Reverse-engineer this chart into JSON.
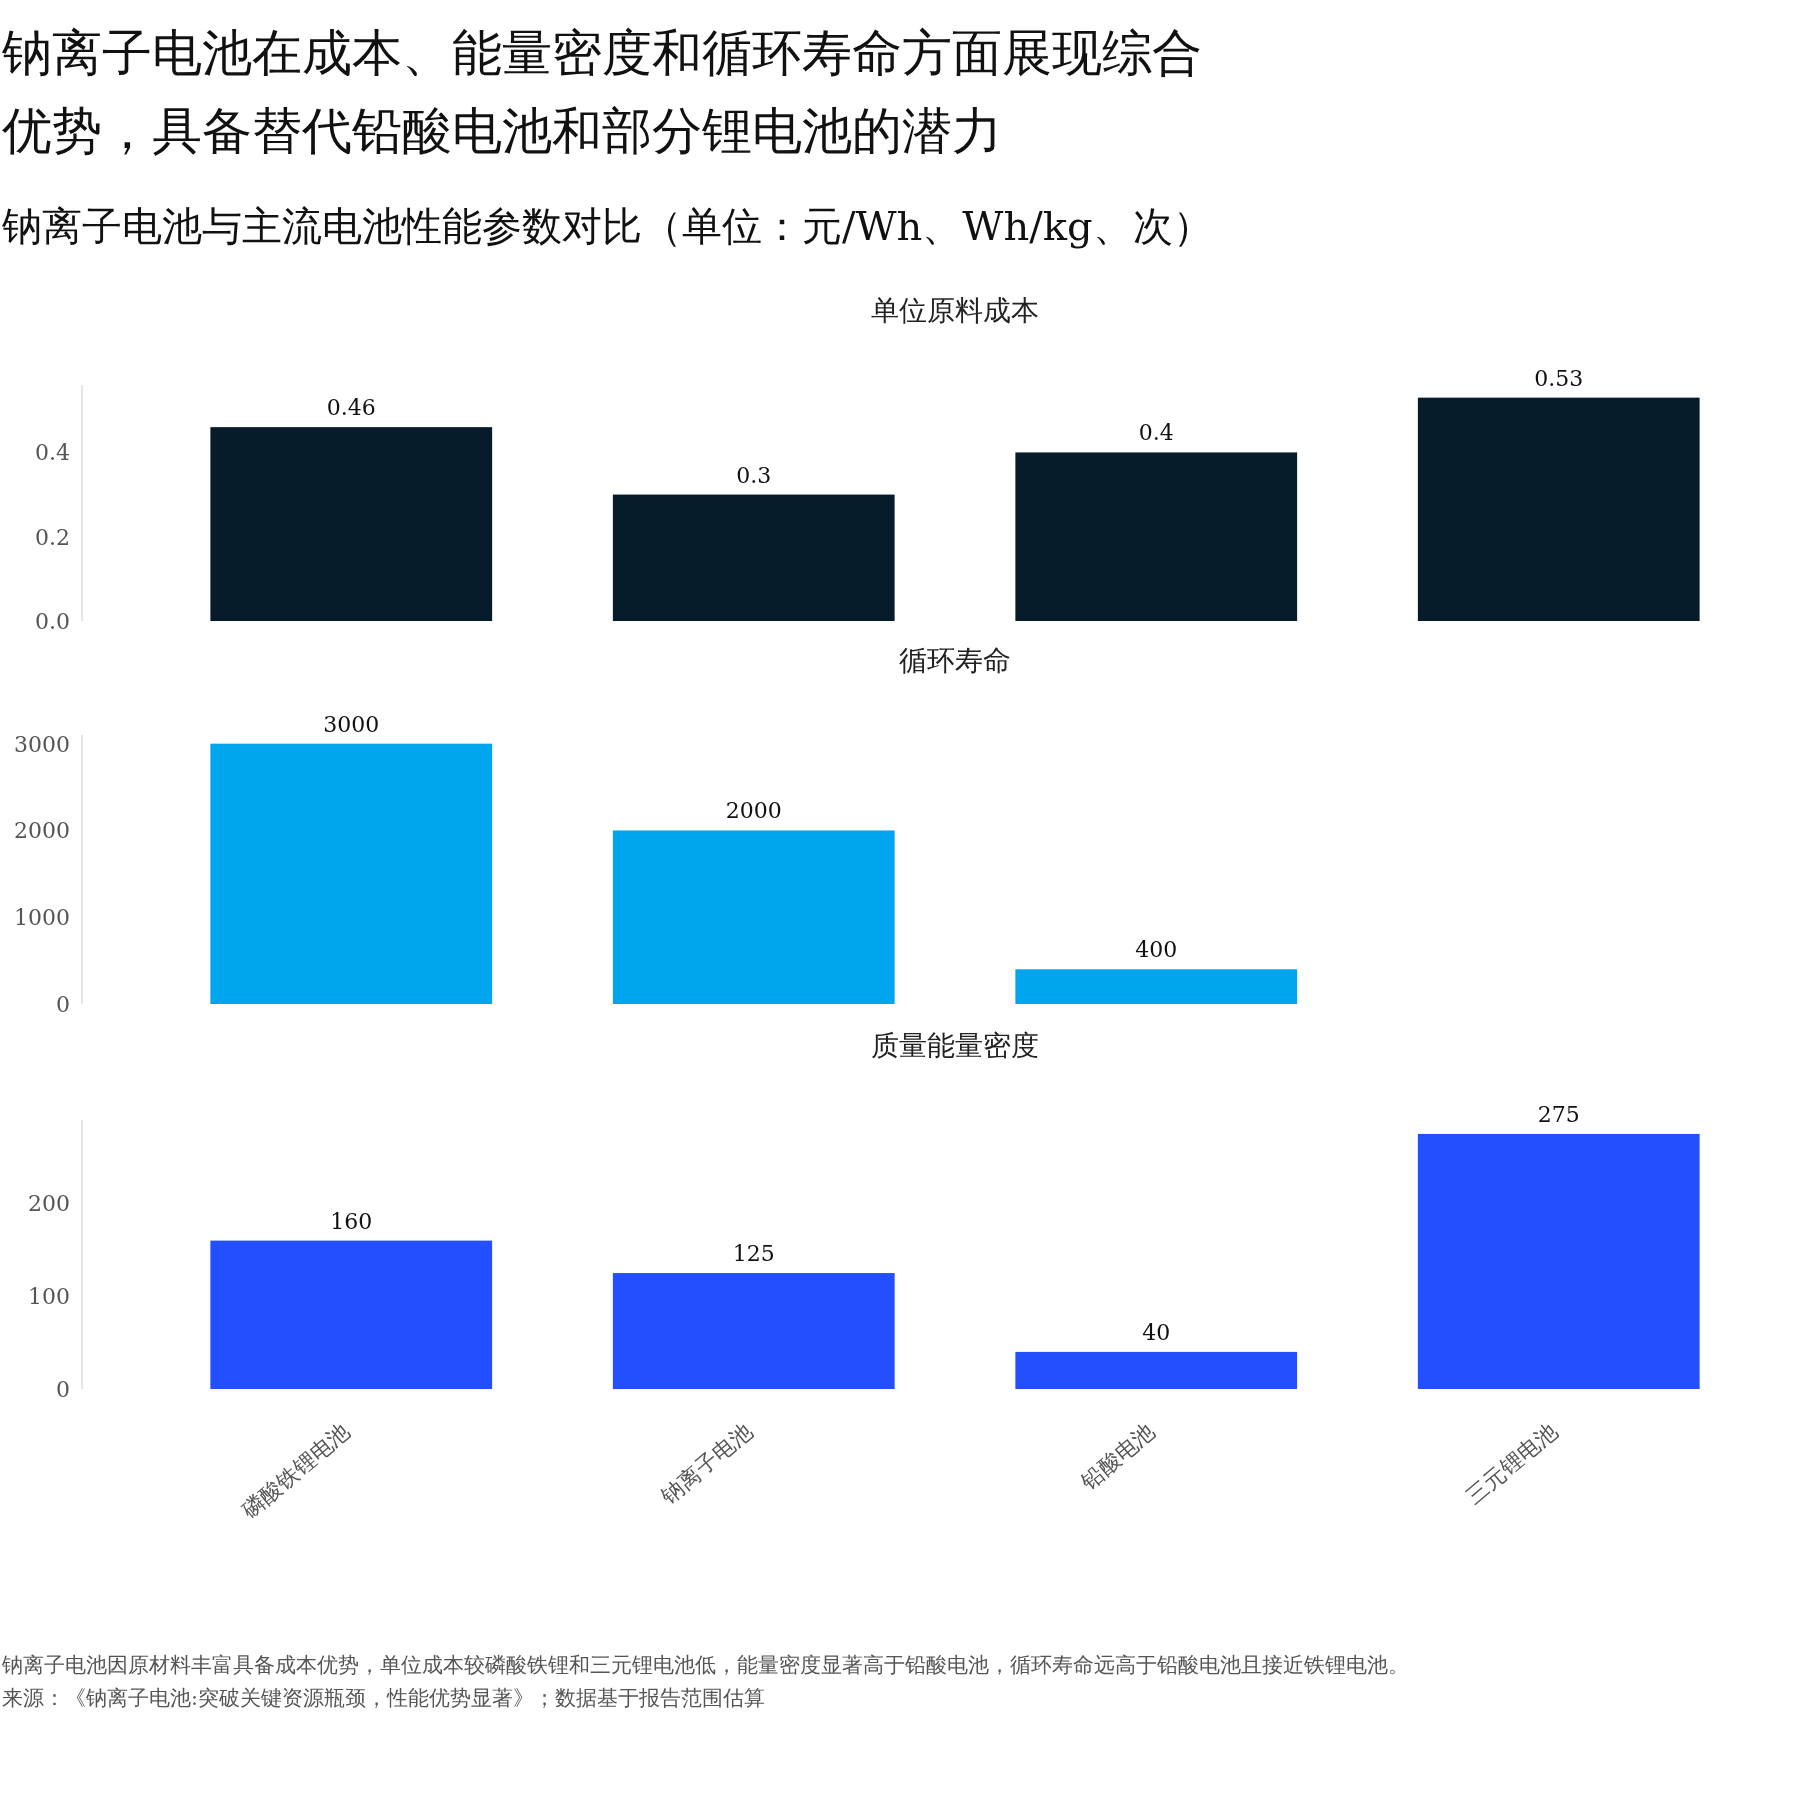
{
  "chart_data": [
    {
      "type": "other",
      "title": "钠离子电池在成本、能量密度和循环寿命方面展现综合优势，具备替代铅酸电池和部分锂电池的潜力",
      "subtitle": "钠离子电池与主流电池性能参数对比（单位：元/Wh、Wh/kg、次）",
      "annotations": [
        "钠离子电池因原材料丰富具备成本优势，单位成本较磷酸铁锂和三元锂电池低，能量密度显著高于铅酸电池，循环寿命远高于铅酸电池且接近铁锂电池。",
        "来源：《钠离子电池:突破关键资源瓶颈，性能优势显著》；数据基于报告范围估算"
      ]
    },
    {
      "type": "bar",
      "title": "单位原料成本",
      "categories": [
        null,
        null,
        null,
        null
      ],
      "values": [
        0.46,
        0.3,
        0.4,
        0.53
      ],
      "color": "#071c2b",
      "ylim": [
        0,
        0.56
      ],
      "yticks": [
        {
          "value": 0,
          "label": "0.0"
        },
        0.2,
        0.4
      ],
      "data_labels": true
    },
    {
      "type": "bar",
      "title": "循环寿命",
      "categories": [
        null,
        null,
        null,
        null
      ],
      "values": [
        3000,
        2000,
        400,
        null
      ],
      "color": "#00a6ed",
      "ylim": [
        0,
        3100
      ],
      "yticks": [
        0,
        1000,
        2000,
        3000
      ],
      "data_labels": true
    },
    {
      "type": "bar",
      "title": "质量能量密度",
      "categories": [
        "磷酸铁锂电池",
        "钠离子电池",
        "铅酸电池",
        "三元锂电池"
      ],
      "values": [
        160,
        125,
        40,
        275
      ],
      "color": "#234ffe",
      "ylim": [
        0,
        290
      ],
      "yticks": [
        0,
        100,
        200
      ],
      "data_labels": true
    }
  ]
}
